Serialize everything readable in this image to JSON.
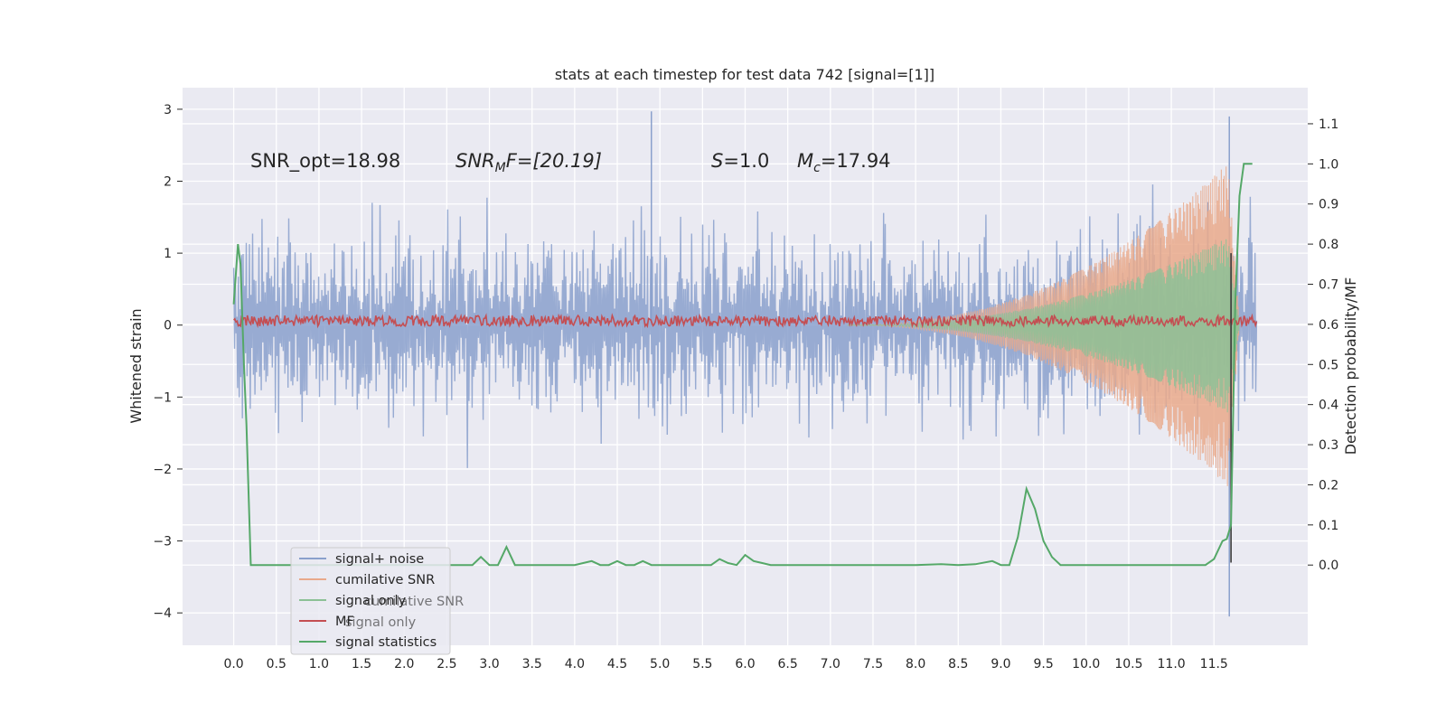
{
  "chart_data": {
    "type": "line",
    "title": "stats at each timestep for test data 742 [signal=[1]]",
    "xlabel": "",
    "ylabel": "Whitened strain",
    "ylabel_right": "Detection probability/MF",
    "xlim": [
      -0.6,
      12.6
    ],
    "ylim": [
      -4.45,
      3.3
    ],
    "ylim_right": [
      -0.2,
      1.19
    ],
    "x_ticks": [
      "0.0",
      "0.5",
      "1.0",
      "1.5",
      "2.0",
      "2.5",
      "3.0",
      "3.5",
      "4.0",
      "4.5",
      "5.0",
      "5.5",
      "6.0",
      "6.5",
      "7.0",
      "7.5",
      "8.0",
      "8.5",
      "9.0",
      "9.5",
      "10.0",
      "10.5",
      "11.0",
      "11.5"
    ],
    "y_ticks": [
      "3",
      "2",
      "1",
      "0",
      "−1",
      "−2",
      "−3",
      "−4"
    ],
    "y_ticks_right": [
      "1.1",
      "1.0",
      "0.9",
      "0.8",
      "0.7",
      "0.6",
      "0.5",
      "0.4",
      "0.3",
      "0.2",
      "0.1",
      "0.0"
    ],
    "grid": true,
    "legend_position": "lower-left",
    "annotations": {
      "snr_opt": "SNR_opt=18.98",
      "snr_mf_main": "SNR",
      "snr_mf_sub": "M",
      "snr_mf_rest": "F=[20.19]",
      "s_sym": "S",
      "s_val": "=1.0",
      "mc_sym": "M",
      "mc_sub": "c",
      "mc_val": "=17.94"
    },
    "legend": [
      {
        "label": "signal+ noise",
        "color": "#8aa0cc"
      },
      {
        "label": "cumilative SNR",
        "color": "#e9a98b"
      },
      {
        "label": "signal only",
        "color": "#8cc196"
      },
      {
        "label": "MF",
        "color": "#c44e52"
      },
      {
        "label": "signal statistics",
        "color": "#55a868"
      }
    ],
    "legend_ghost": [
      {
        "label": "cumilative SNR"
      },
      {
        "label": "signal only"
      }
    ],
    "series": [
      {
        "name": "signal statistics",
        "color": "#55a868",
        "x": [
          0.0,
          0.05,
          0.08,
          0.12,
          0.15,
          0.2,
          0.25,
          0.5,
          1.0,
          1.5,
          2.0,
          2.5,
          2.8,
          2.9,
          3.0,
          3.1,
          3.2,
          3.3,
          3.5,
          4.0,
          4.1,
          4.2,
          4.3,
          4.4,
          4.5,
          4.6,
          4.7,
          4.8,
          4.9,
          5.0,
          5.5,
          5.6,
          5.7,
          5.8,
          5.9,
          6.0,
          6.1,
          6.2,
          6.3,
          6.5,
          7.0,
          8.0,
          8.3,
          8.5,
          8.7,
          8.9,
          9.0,
          9.1,
          9.2,
          9.3,
          9.4,
          9.5,
          9.6,
          9.7,
          10.0,
          10.5,
          11.0,
          11.4,
          11.5,
          11.6,
          11.65,
          11.7,
          11.75,
          11.8,
          11.85,
          11.9,
          11.95
        ],
        "y": [
          0.65,
          0.8,
          0.75,
          0.5,
          0.35,
          0.0,
          0.0,
          0.0,
          0.0,
          0.0,
          0.0,
          0.0,
          0.0,
          0.02,
          0.0,
          0.0,
          0.045,
          0.0,
          0.0,
          0.0,
          0.005,
          0.01,
          0.0,
          0.0,
          0.01,
          0.0,
          0.0,
          0.01,
          0.0,
          0.0,
          0.0,
          0.0,
          0.015,
          0.005,
          0.0,
          0.025,
          0.01,
          0.005,
          0.0,
          0.0,
          0.0,
          0.0,
          0.002,
          0.0,
          0.002,
          0.01,
          0.0,
          0.0,
          0.07,
          0.19,
          0.14,
          0.06,
          0.02,
          0.0,
          0.0,
          0.0,
          0.0,
          0.0,
          0.015,
          0.06,
          0.065,
          0.1,
          0.65,
          0.92,
          1.0,
          1.0,
          1.0
        ]
      }
    ],
    "noise_series": {
      "name": "signal+ noise",
      "x_range": [
        0.0,
        12.0
      ],
      "samples": 1300,
      "peak": 2.97
    },
    "cumulative_snr": {
      "name": "cumilative SNR",
      "x_range": [
        7.2,
        11.8
      ],
      "peak_value": 2.4,
      "cycles": 150
    },
    "signal_only": {
      "name": "signal only",
      "x_range": [
        7.2,
        11.8
      ],
      "peak_value": 1.3
    },
    "mf": {
      "name": "MF",
      "level": 0.1,
      "spike_x": 11.7,
      "spike_value": -3.3
    }
  }
}
